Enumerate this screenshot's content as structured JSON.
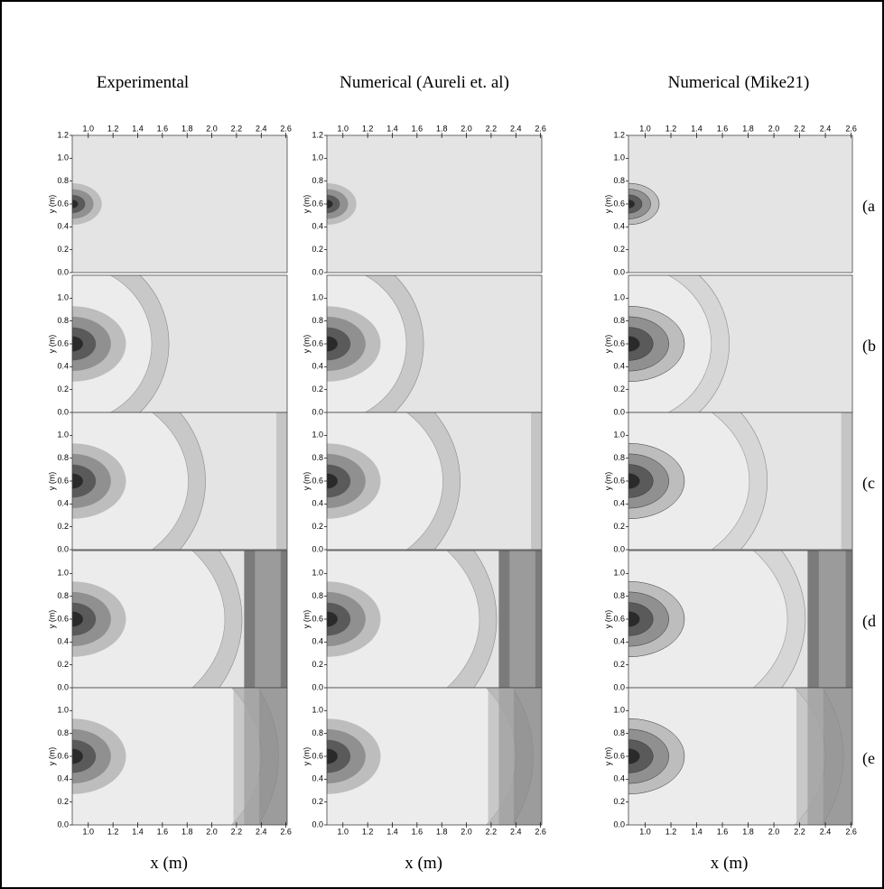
{
  "columns": [
    {
      "title": "Experimental"
    },
    {
      "title": "Numerical (Aureli et. al)"
    },
    {
      "title": "Numerical (Mike21)"
    }
  ],
  "rows": [
    "(a",
    "(b",
    "(c",
    "(d",
    "(e"
  ],
  "xtick_labels": [
    "1.0",
    "1.2",
    "1.4",
    "1.6",
    "1.8",
    "2.0",
    "2.2",
    "2.4",
    "2.6"
  ],
  "ytick_labels": [
    "0.0",
    "0.2",
    "0.4",
    "0.6",
    "0.8",
    "1.0",
    "1.2"
  ],
  "x_label": "x (m)",
  "y_label": "y (m)"
}
